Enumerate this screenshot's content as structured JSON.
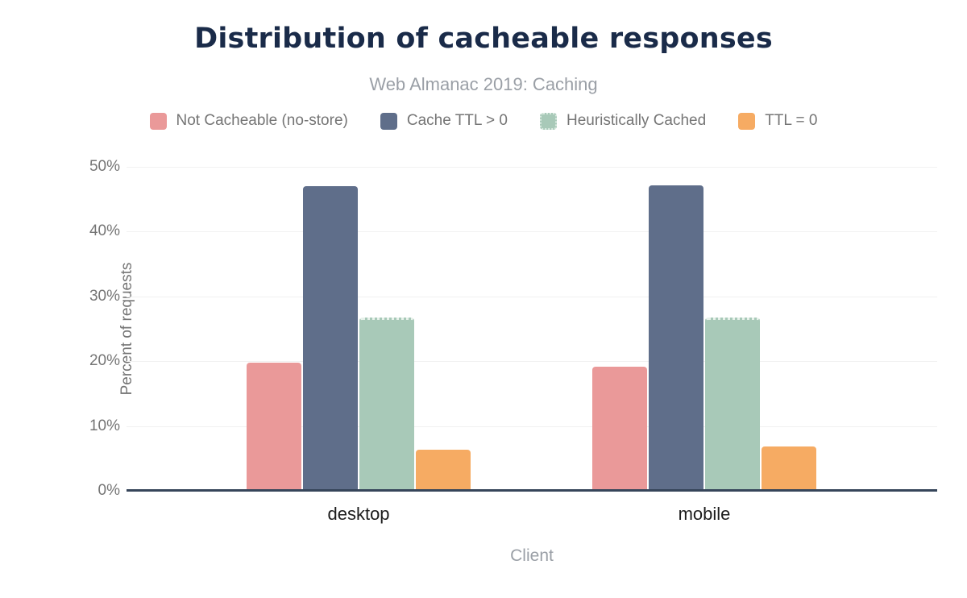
{
  "chart_data": {
    "type": "bar",
    "title": "Distribution of cacheable responses",
    "subtitle": "Web Almanac 2019: Caching",
    "categories": [
      "desktop",
      "mobile"
    ],
    "series": [
      {
        "name": "Not Cacheable (no-store)",
        "color": "#ea9999",
        "values": [
          19.8,
          19.2
        ]
      },
      {
        "name": "Cache TTL > 0",
        "color": "#5f6e8a",
        "values": [
          47.0,
          47.1
        ]
      },
      {
        "name": "Heuristically Cached",
        "color": "#a8c9b8",
        "values": [
          26.8,
          26.8
        ],
        "border_style": "dotted"
      },
      {
        "name": "TTL = 0",
        "color": "#f6ab63",
        "values": [
          6.3,
          6.8
        ]
      }
    ],
    "xlabel": "Client",
    "ylabel": "Percent of requests",
    "ylim": [
      0,
      50
    ],
    "y_ticks": [
      {
        "value": 0,
        "label": "0%"
      },
      {
        "value": 10,
        "label": "10%"
      },
      {
        "value": 20,
        "label": "20%"
      },
      {
        "value": 30,
        "label": "30%"
      },
      {
        "value": 40,
        "label": "40%"
      },
      {
        "value": 50,
        "label": "50%"
      }
    ],
    "grid": "horizontal",
    "legend_position": "top",
    "colors": {
      "title_text": "#1a2b49",
      "muted_text": "#757575",
      "subtitle_text": "#9a9fa6",
      "category_text": "#1c1c1c",
      "axis_line": "#36455a",
      "gridline": "#f1f1f1",
      "background": "#ffffff"
    }
  }
}
